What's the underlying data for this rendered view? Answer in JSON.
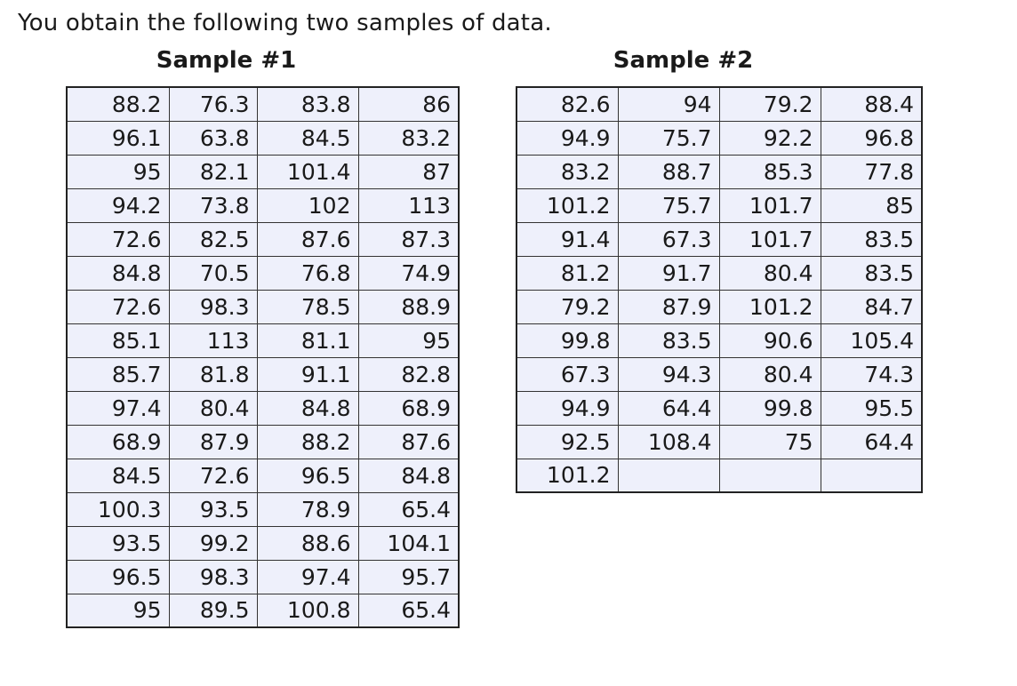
{
  "intro": "You obtain the following two samples of data.",
  "sample1": {
    "title": "Sample #1",
    "rows": [
      [
        "88.2",
        "76.3",
        "83.8",
        "86"
      ],
      [
        "96.1",
        "63.8",
        "84.5",
        "83.2"
      ],
      [
        "95",
        "82.1",
        "101.4",
        "87"
      ],
      [
        "94.2",
        "73.8",
        "102",
        "113"
      ],
      [
        "72.6",
        "82.5",
        "87.6",
        "87.3"
      ],
      [
        "84.8",
        "70.5",
        "76.8",
        "74.9"
      ],
      [
        "72.6",
        "98.3",
        "78.5",
        "88.9"
      ],
      [
        "85.1",
        "113",
        "81.1",
        "95"
      ],
      [
        "85.7",
        "81.8",
        "91.1",
        "82.8"
      ],
      [
        "97.4",
        "80.4",
        "84.8",
        "68.9"
      ],
      [
        "68.9",
        "87.9",
        "88.2",
        "87.6"
      ],
      [
        "84.5",
        "72.6",
        "96.5",
        "84.8"
      ],
      [
        "100.3",
        "93.5",
        "78.9",
        "65.4"
      ],
      [
        "93.5",
        "99.2",
        "88.6",
        "104.1"
      ],
      [
        "96.5",
        "98.3",
        "97.4",
        "95.7"
      ],
      [
        "95",
        "89.5",
        "100.8",
        "65.4"
      ]
    ]
  },
  "sample2": {
    "title": "Sample #2",
    "rows": [
      [
        "82.6",
        "94",
        "79.2",
        "88.4"
      ],
      [
        "94.9",
        "75.7",
        "92.2",
        "96.8"
      ],
      [
        "83.2",
        "88.7",
        "85.3",
        "77.8"
      ],
      [
        "101.2",
        "75.7",
        "101.7",
        "85"
      ],
      [
        "91.4",
        "67.3",
        "101.7",
        "83.5"
      ],
      [
        "81.2",
        "91.7",
        "80.4",
        "83.5"
      ],
      [
        "79.2",
        "87.9",
        "101.2",
        "84.7"
      ],
      [
        "99.8",
        "83.5",
        "90.6",
        "105.4"
      ],
      [
        "67.3",
        "94.3",
        "80.4",
        "74.3"
      ],
      [
        "94.9",
        "64.4",
        "99.8",
        "95.5"
      ],
      [
        "92.5",
        "108.4",
        "75",
        "64.4"
      ],
      [
        "101.2",
        "",
        "",
        ""
      ]
    ]
  }
}
